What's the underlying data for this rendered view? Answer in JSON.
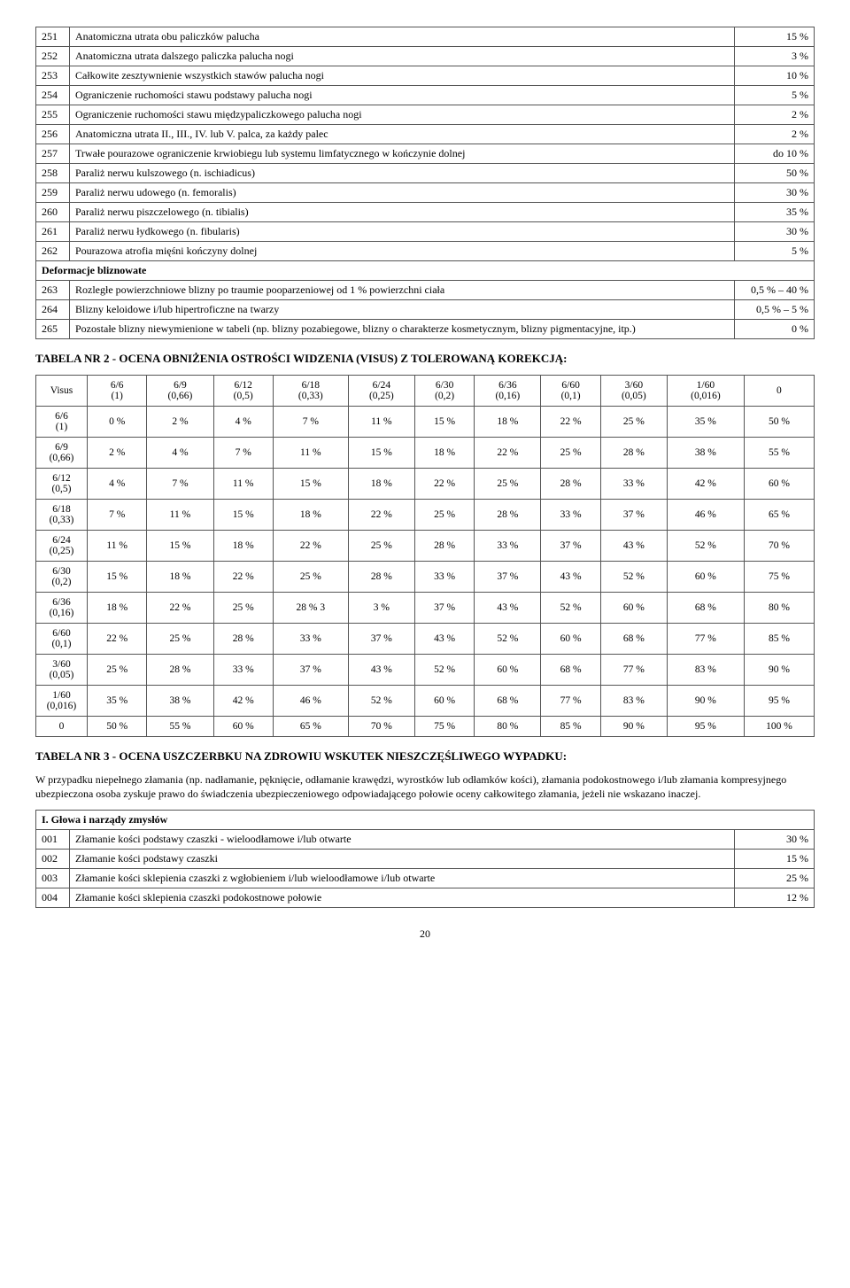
{
  "table1": {
    "rows": [
      {
        "n": "251",
        "desc": "Anatomiczna utrata obu paliczków palucha",
        "pct": "15 %"
      },
      {
        "n": "252",
        "desc": "Anatomiczna utrata dalszego paliczka palucha nogi",
        "pct": "3 %"
      },
      {
        "n": "253",
        "desc": "Całkowite zesztywnienie wszystkich stawów palucha nogi",
        "pct": "10 %"
      },
      {
        "n": "254",
        "desc": "Ograniczenie ruchomości stawu podstawy palucha nogi",
        "pct": "5 %"
      },
      {
        "n": "255",
        "desc": "Ograniczenie ruchomości stawu międzypaliczkowego palucha nogi",
        "pct": "2 %"
      },
      {
        "n": "256",
        "desc": "Anatomiczna utrata II., III., IV. lub V. palca, za każdy palec",
        "pct": "2 %"
      },
      {
        "n": "257",
        "desc": "Trwałe pourazowe ograniczenie krwiobiegu lub systemu limfatycznego w kończynie dolnej",
        "pct": "do 10 %"
      },
      {
        "n": "258",
        "desc": "Paraliż nerwu kulszowego (n. ischiadicus)",
        "pct": "50 %"
      },
      {
        "n": "259",
        "desc": "Paraliż nerwu udowego (n. femoralis)",
        "pct": "30 %"
      },
      {
        "n": "260",
        "desc": "Paraliż nerwu piszczelowego (n. tibialis)",
        "pct": "35 %"
      },
      {
        "n": "261",
        "desc": "Paraliż nerwu łydkowego (n. fibularis)",
        "pct": "30 %"
      },
      {
        "n": "262",
        "desc": "Pourazowa atrofia mięśni kończyny dolnej",
        "pct": "5 %"
      }
    ],
    "section": "Deformacje bliznowate",
    "rows2": [
      {
        "n": "263",
        "desc": "Rozległe powierzchniowe blizny po traumie pooparzeniowej od 1 % powierzchni ciała",
        "pct": "0,5 % – 40 %"
      },
      {
        "n": "264",
        "desc": "Blizny keloidowe i/lub hipertroficzne na twarzy",
        "pct": "0,5 % – 5 %"
      },
      {
        "n": "265",
        "desc": "Pozostałe blizny niewymienione w tabeli (np. blizny pozabiegowe, blizny o charakterze kosmetycznym, blizny pigmentacyjne, itp.)",
        "pct": "0 %"
      }
    ]
  },
  "table2": {
    "caption": "TABELA NR 2 - OCENA OBNIŻENIA OSTROŚCI WIDZENIA (VISUS) Z TOLEROWANĄ KOREKCJĄ:",
    "head_label": "Visus",
    "cols": [
      "6/6\n(1)",
      "6/9\n(0,66)",
      "6/12\n(0,5)",
      "6/18\n(0,33)",
      "6/24\n(0,25)",
      "6/30\n(0,2)",
      "6/36\n(0,16)",
      "6/60\n(0,1)",
      "3/60\n(0,05)",
      "1/60\n(0,016)",
      "0"
    ],
    "rowheads": [
      "6/6\n(1)",
      "6/9\n(0,66)",
      "6/12\n(0,5)",
      "6/18\n(0,33)",
      "6/24\n(0,25)",
      "6/30\n(0,2)",
      "6/36\n(0,16)",
      "6/60\n(0,1)",
      "3/60\n(0,05)",
      "1/60\n(0,016)",
      "0"
    ],
    "grid": [
      [
        "0 %",
        "2 %",
        "4 %",
        "7 %",
        "11 %",
        "15 %",
        "18 %",
        "22 %",
        "25 %",
        "35 %",
        "50 %"
      ],
      [
        "2 %",
        "4 %",
        "7 %",
        "11 %",
        "15 %",
        "18 %",
        "22 %",
        "25 %",
        "28 %",
        "38 %",
        "55 %"
      ],
      [
        "4 %",
        "7 %",
        "11 %",
        "15 %",
        "18 %",
        "22 %",
        "25 %",
        "28 %",
        "33 %",
        "42 %",
        "60 %"
      ],
      [
        "7 %",
        "11 %",
        "15 %",
        "18 %",
        "22 %",
        "25 %",
        "28 %",
        "33 %",
        "37 %",
        "46 %",
        "65 %"
      ],
      [
        "11 %",
        "15 %",
        "18 %",
        "22 %",
        "25 %",
        "28 %",
        "33 %",
        "37 %",
        "43 %",
        "52 %",
        "70 %"
      ],
      [
        "15 %",
        "18 %",
        "22 %",
        "25 %",
        "28 %",
        "33 %",
        "37 %",
        "43 %",
        "52 %",
        "60 %",
        "75 %"
      ],
      [
        "18 %",
        "22 %",
        "25 %",
        "28 % 3",
        "3 %",
        "37 %",
        "43 %",
        "52 %",
        "60 %",
        "68 %",
        "80 %"
      ],
      [
        "22 %",
        "25 %",
        "28 %",
        "33 %",
        "37 %",
        "43 %",
        "52 %",
        "60 %",
        "68 %",
        "77 %",
        "85 %"
      ],
      [
        "25 %",
        "28 %",
        "33 %",
        "37 %",
        "43 %",
        "52 %",
        "60 %",
        "68 %",
        "77 %",
        "83 %",
        "90 %"
      ],
      [
        "35 %",
        "38 %",
        "42 %",
        "46 %",
        "52 %",
        "60 %",
        "68 %",
        "77 %",
        "83 %",
        "90 %",
        "95 %"
      ],
      [
        "50 %",
        "55 %",
        "60 %",
        "65 %",
        "70 %",
        "75 %",
        "80 %",
        "85 %",
        "90 %",
        "95 %",
        "100 %"
      ]
    ]
  },
  "table3": {
    "caption": "TABELA NR 3 - OCENA USZCZERBKU NA ZDROWIU WSKUTEK NIESZCZĘŚLIWEGO WYPADKU:",
    "note": "W przypadku niepełnego złamania (np. nadłamanie, pęknięcie, odłamanie krawędzi, wyrostków lub odłamków kości), złamania podokostnowego i/lub złamania kompresyjnego ubezpieczona osoba zyskuje prawo do świadczenia ubezpieczeniowego odpowiadającego połowie oceny całkowitego złamania, jeżeli nie wskazano inaczej.",
    "section": "I. Głowa i narządy zmysłów",
    "rows": [
      {
        "n": "001",
        "desc": "Złamanie kości podstawy czaszki - wieloodłamowe i/lub otwarte",
        "pct": "30 %"
      },
      {
        "n": "002",
        "desc": "Złamanie kości podstawy czaszki",
        "pct": "15 %"
      },
      {
        "n": "003",
        "desc": "Złamanie kości sklepienia czaszki z wgłobieniem i/lub wieloodłamowe i/lub otwarte",
        "pct": "25 %"
      },
      {
        "n": "004",
        "desc": "Złamanie kości sklepienia czaszki podokostnowe połowie",
        "pct": "12 %"
      }
    ]
  },
  "page_number": "20"
}
